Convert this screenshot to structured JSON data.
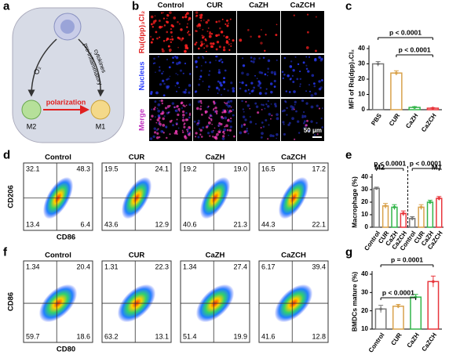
{
  "panel_labels": [
    "a",
    "b",
    "c",
    "d",
    "e",
    "f",
    "g"
  ],
  "schematic": {
    "oxygen": "O₂",
    "cytokines": [
      "pro-inflammatory",
      "cytokines"
    ],
    "polarization": "polarization",
    "m2": "M2",
    "m1": "M1"
  },
  "imaging": {
    "columns": [
      "Control",
      "CUR",
      "CaZH",
      "CaZCH"
    ],
    "rows": [
      "Ru(dpp)₃Cl₂",
      "Nucleus",
      "Merge"
    ],
    "scale_bar": "50 μm"
  },
  "flow_cd206": {
    "xlabel": "CD86",
    "ylabel": "CD206",
    "plots": [
      {
        "title": "Control",
        "quadrants": [
          "32.1",
          "48.3",
          "13.4",
          "6.4"
        ]
      },
      {
        "title": "CUR",
        "quadrants": [
          "19.5",
          "24.1",
          "43.6",
          "12.9"
        ]
      },
      {
        "title": "CaZH",
        "quadrants": [
          "19.2",
          "19.0",
          "40.6",
          "21.3"
        ]
      },
      {
        "title": "CaZCH",
        "quadrants": [
          "16.5",
          "17.2",
          "44.3",
          "22.1"
        ]
      }
    ]
  },
  "flow_cd86": {
    "xlabel": "CD80",
    "ylabel": "CD86",
    "plots": [
      {
        "title": "Control",
        "quadrants": [
          "1.34",
          "20.4",
          "59.7",
          "18.6"
        ]
      },
      {
        "title": "CUR",
        "quadrants": [
          "1.31",
          "22.3",
          "63.2",
          "13.1"
        ]
      },
      {
        "title": "CaZH",
        "quadrants": [
          "1.34",
          "27.4",
          "51.4",
          "19.9"
        ]
      },
      {
        "title": "CaZCH",
        "quadrants": [
          "6.17",
          "39.4",
          "41.6",
          "12.8"
        ]
      }
    ]
  },
  "chart_data": [
    {
      "type": "bar",
      "ylabel": "MFI of Ru(dpp)₃Cl₂",
      "categories": [
        "PBS",
        "CUR",
        "CaZH",
        "CaZCH"
      ],
      "values": [
        30,
        24,
        1.5,
        1
      ],
      "errors": [
        1.5,
        1.5,
        0.5,
        0.3
      ],
      "colors": [
        "#777777",
        "#d9a24c",
        "#33b54a",
        "#e8363c"
      ],
      "ylim": [
        0,
        40
      ],
      "yticks": [
        0,
        10,
        20,
        30,
        40
      ],
      "annotations": [
        "p < 0.0001",
        "p < 0.0001"
      ]
    },
    {
      "type": "bar",
      "ylabel": "Macrophage (%)",
      "groups": [
        "M2",
        "M1"
      ],
      "categories": [
        "Control",
        "CUR",
        "CaZH",
        "CaZCH",
        "Control",
        "CUR",
        "CaZH",
        "CaZCH"
      ],
      "values": [
        31,
        17,
        16,
        11,
        7,
        16,
        20,
        23
      ],
      "errors": [
        1,
        2,
        2,
        2,
        1.5,
        2,
        1.5,
        1.5
      ],
      "colors": [
        "#777777",
        "#d9a24c",
        "#33b54a",
        "#e8363c",
        "#777777",
        "#d9a24c",
        "#33b54a",
        "#e8363c"
      ],
      "ylim": [
        0,
        40
      ],
      "yticks": [
        0,
        10,
        20,
        30,
        40
      ],
      "annotations": [
        "p < 0.0001",
        "p < 0.0001"
      ]
    },
    {
      "type": "bar",
      "ylabel": "BMDCs mature (%)",
      "categories": [
        "Control",
        "CUR",
        "CaZH",
        "CaZCH"
      ],
      "values": [
        21,
        22.5,
        27.5,
        36
      ],
      "errors": [
        2,
        1,
        1.5,
        3
      ],
      "colors": [
        "#777777",
        "#d9a24c",
        "#33b54a",
        "#e8363c"
      ],
      "ylim": [
        10,
        40
      ],
      "yticks": [
        10,
        20,
        30,
        40
      ],
      "annotations": [
        "p = 0.0001",
        "p < 0.0001"
      ]
    }
  ]
}
